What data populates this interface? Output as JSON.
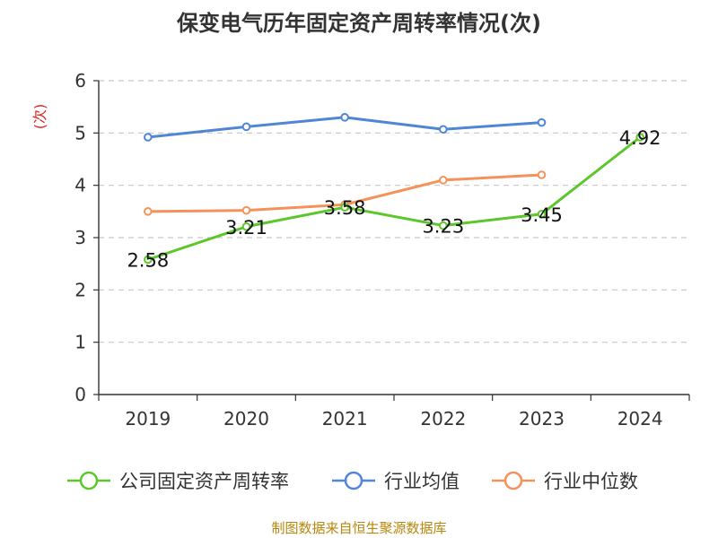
{
  "title": "保变电气历年固定资产周转率情况(次)",
  "source": "制图数据来自恒生聚源数据库",
  "chart_data": {
    "type": "line",
    "title": "保变电气历年固定资产周转率情况(次)",
    "ylabel": "(次)",
    "xlabel": "",
    "categories": [
      "2019",
      "2020",
      "2021",
      "2022",
      "2023",
      "2024"
    ],
    "ylim": [
      0,
      6
    ],
    "yticks": [
      0,
      1,
      2,
      3,
      4,
      5,
      6
    ],
    "grid": true,
    "legend_position": "bottom",
    "series": [
      {
        "name": "公司固定资产周转率",
        "color": "#5bc72a",
        "values": [
          2.58,
          3.21,
          3.58,
          3.23,
          3.45,
          4.92
        ],
        "labels": [
          "2.58",
          "3.21",
          "3.58",
          "3.23",
          "3.45",
          "4.92"
        ]
      },
      {
        "name": "行业均值",
        "color": "#4f86d6",
        "values": [
          4.92,
          5.12,
          5.3,
          5.07,
          5.2,
          null
        ]
      },
      {
        "name": "行业中位数",
        "color": "#f5925a",
        "values": [
          3.5,
          3.52,
          3.63,
          4.1,
          4.2,
          null
        ]
      }
    ]
  }
}
